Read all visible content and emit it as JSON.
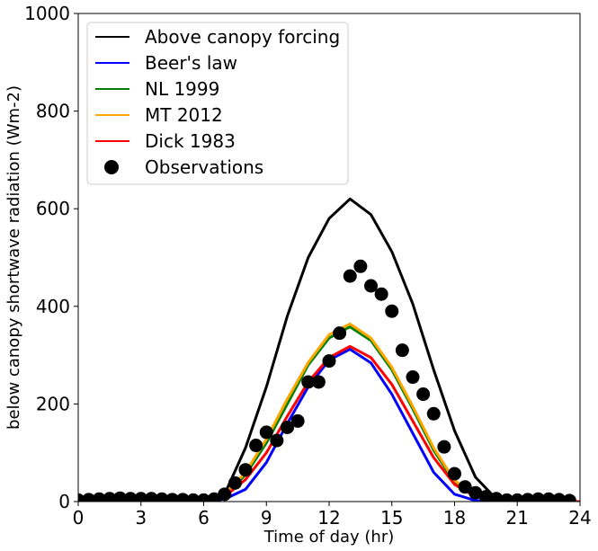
{
  "chart_data": {
    "type": "line",
    "xlabel": "Time of day (hr)",
    "ylabel": "below canopy shortwave radiation (Wm-2)",
    "xlim": [
      0,
      24
    ],
    "ylim": [
      0,
      1000
    ],
    "xticks": [
      0,
      3,
      6,
      9,
      12,
      15,
      18,
      21,
      24
    ],
    "yticks": [
      0,
      200,
      400,
      600,
      800,
      1000
    ],
    "grid": false,
    "legend_position": "top-left",
    "series": [
      {
        "name": "Above canopy forcing",
        "color": "#000000",
        "x": [
          0,
          1,
          2,
          3,
          4,
          5,
          6,
          7,
          8,
          9,
          10,
          11,
          12,
          13,
          14,
          15,
          16,
          17,
          18,
          19,
          20,
          21,
          22,
          23,
          24
        ],
        "values": [
          0,
          0,
          0,
          0,
          0,
          0,
          0,
          15,
          110,
          235,
          380,
          500,
          580,
          620,
          588,
          512,
          405,
          270,
          145,
          50,
          5,
          0,
          0,
          0,
          0
        ]
      },
      {
        "name": "Beer's law",
        "color": "#0000ff",
        "x": [
          0,
          1,
          2,
          3,
          4,
          5,
          6,
          7,
          8,
          9,
          10,
          11,
          12,
          13,
          14,
          15,
          16,
          17,
          18,
          19,
          20,
          21,
          22,
          23,
          24
        ],
        "values": [
          0,
          0,
          0,
          0,
          0,
          0,
          0,
          5,
          25,
          80,
          160,
          235,
          290,
          312,
          284,
          220,
          140,
          60,
          15,
          2,
          0,
          0,
          0,
          0,
          0
        ]
      },
      {
        "name": "NL 1999",
        "color": "#008000",
        "x": [
          0,
          1,
          2,
          3,
          4,
          5,
          6,
          7,
          8,
          9,
          10,
          11,
          12,
          13,
          14,
          15,
          16,
          17,
          18,
          19,
          20,
          21,
          22,
          23,
          24
        ],
        "values": [
          0,
          0,
          0,
          0,
          0,
          0,
          0,
          12,
          55,
          120,
          200,
          280,
          335,
          358,
          330,
          270,
          190,
          105,
          40,
          12,
          3,
          0,
          0,
          0,
          0
        ]
      },
      {
        "name": "MT 2012",
        "color": "#ffa500",
        "x": [
          0,
          1,
          2,
          3,
          4,
          5,
          6,
          7,
          8,
          9,
          10,
          11,
          12,
          13,
          14,
          15,
          16,
          17,
          18,
          19,
          20,
          21,
          22,
          23,
          24
        ],
        "values": [
          0,
          0,
          0,
          0,
          0,
          0,
          0,
          14,
          60,
          128,
          210,
          285,
          342,
          364,
          335,
          275,
          195,
          110,
          43,
          13,
          3,
          0,
          0,
          0,
          0
        ]
      },
      {
        "name": "Dick 1983",
        "color": "#ff0000",
        "x": [
          0,
          1,
          2,
          3,
          4,
          5,
          6,
          7,
          8,
          9,
          10,
          11,
          12,
          13,
          14,
          15,
          16,
          17,
          18,
          19,
          20,
          21,
          22,
          23,
          24
        ],
        "values": [
          0,
          0,
          0,
          0,
          0,
          0,
          0,
          10,
          45,
          100,
          175,
          245,
          295,
          318,
          295,
          240,
          165,
          90,
          35,
          10,
          2,
          0,
          0,
          0,
          0
        ]
      },
      {
        "name": "Observations",
        "color": "#000000",
        "style": "scatter",
        "x": [
          0,
          0.5,
          1,
          1.5,
          2,
          2.5,
          3,
          3.5,
          4,
          4.5,
          5,
          5.5,
          6,
          6.5,
          7,
          7.5,
          8,
          8.5,
          9,
          9.5,
          10,
          10.5,
          11,
          11.5,
          12,
          12.5,
          13,
          13.5,
          14,
          14.5,
          15,
          15.5,
          16,
          16.5,
          17,
          17.5,
          18,
          18.5,
          19,
          19.5,
          20,
          20.5,
          21,
          21.5,
          22,
          22.5,
          23,
          23.5
        ],
        "values": [
          3,
          4,
          5,
          6,
          7,
          6,
          6,
          6,
          5,
          4,
          4,
          3,
          3,
          5,
          15,
          38,
          65,
          115,
          142,
          125,
          152,
          165,
          245,
          245,
          288,
          345,
          462,
          482,
          442,
          425,
          390,
          310,
          255,
          220,
          180,
          112,
          57,
          30,
          18,
          10,
          6,
          3,
          3,
          4,
          5,
          5,
          4,
          2
        ]
      }
    ]
  }
}
